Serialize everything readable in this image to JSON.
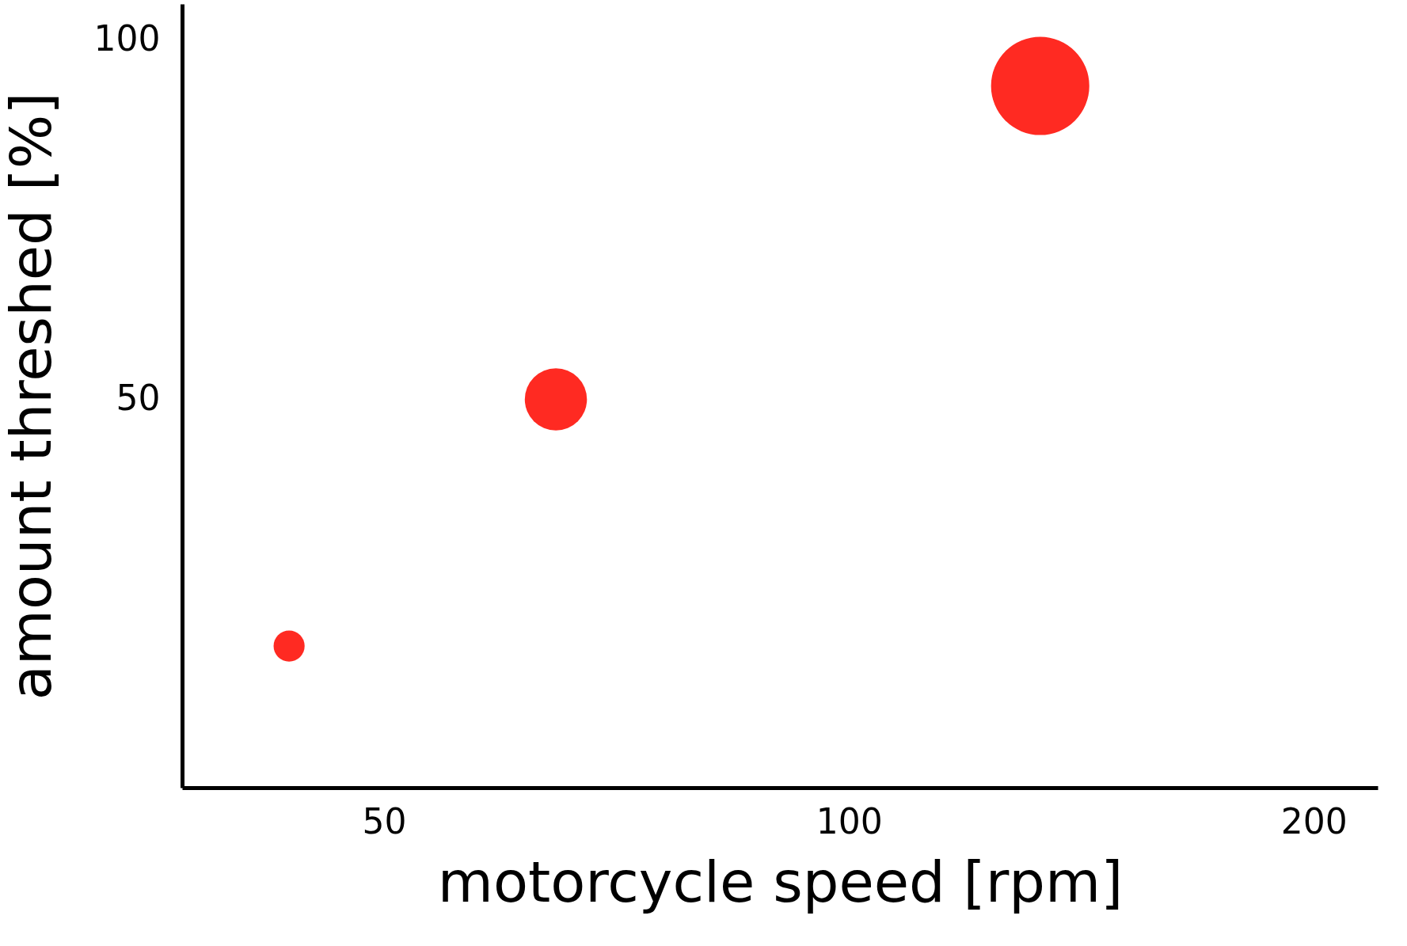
{
  "chart_data": {
    "type": "bubble",
    "xlabel": "motorcycle speed [rpm]",
    "ylabel": "amount threshed [%]",
    "x": [
      43.4,
      64.6,
      133
    ],
    "series": [
      {
        "color": "#ff2a22",
        "values": [
          15.7,
          50,
          93.6
        ],
        "sizes": [
          0.1,
          0.4,
          1
        ]
      }
    ],
    "log": "x",
    "xlim": [
      37,
      220
    ],
    "xticks": [
      50,
      100,
      200
    ],
    "ylim": [
      -4,
      105
    ],
    "yticks": [
      50,
      100
    ],
    "grid": false
  }
}
